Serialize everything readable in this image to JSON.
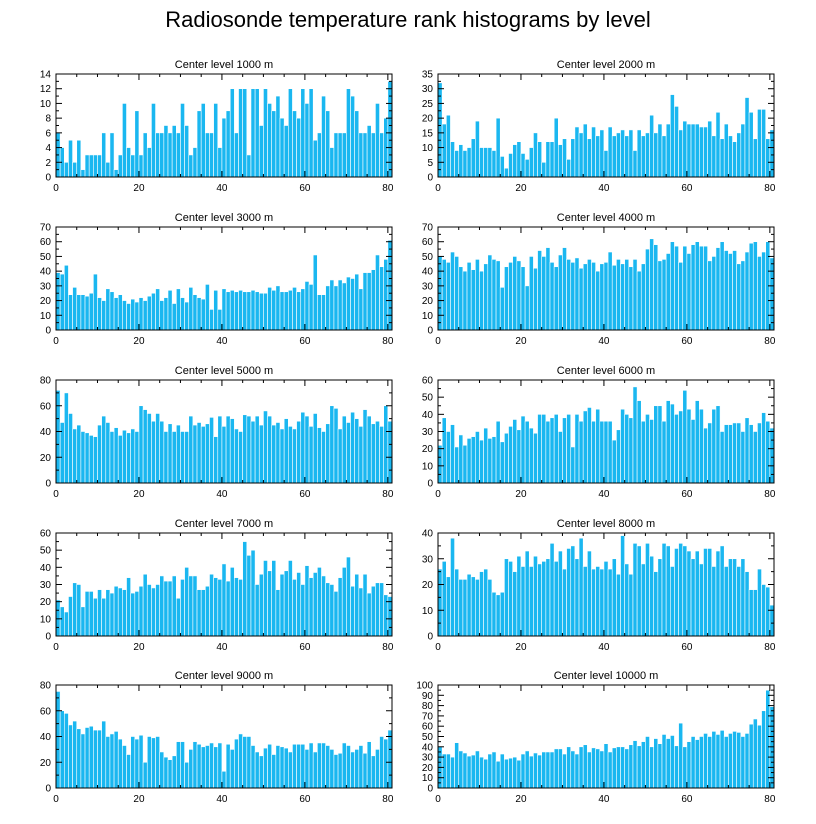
{
  "page": {
    "title": "Radiosonde temperature rank histograms by level"
  },
  "colors": {
    "bar": "#1ab7f0",
    "bar_edge": "#ffffff",
    "axis": "#000000",
    "background": "#ffffff"
  },
  "chart_data": [
    {
      "type": "bar",
      "title": "Center level 1000 m",
      "xlabel": "",
      "ylabel": "",
      "x_start": 0,
      "xlim": [
        0,
        81
      ],
      "ylim": [
        0,
        14
      ],
      "xticks": [
        0,
        20,
        40,
        60,
        80
      ],
      "yticks": [
        0,
        2,
        4,
        6,
        8,
        10,
        12,
        14
      ],
      "values": [
        6,
        4,
        2,
        5,
        2,
        5,
        1,
        3,
        3,
        3,
        3,
        6,
        2,
        6,
        1,
        3,
        10,
        4,
        3,
        9,
        3,
        6,
        4,
        10,
        6,
        6,
        7,
        6,
        7,
        6,
        10,
        7,
        3,
        4,
        9,
        10,
        6,
        6,
        10,
        4,
        8,
        9,
        12,
        6,
        12,
        12,
        3,
        12,
        12,
        7,
        12,
        10,
        9,
        11,
        8,
        7,
        12,
        9,
        8,
        12,
        10,
        12,
        5,
        6,
        11,
        9,
        4,
        6,
        6,
        6,
        12,
        11,
        9,
        6,
        6,
        7,
        6,
        10,
        6,
        8,
        13
      ]
    },
    {
      "type": "bar",
      "title": "Center level 2000 m",
      "xlabel": "",
      "ylabel": "",
      "x_start": 0,
      "xlim": [
        0,
        81
      ],
      "ylim": [
        0,
        35
      ],
      "xticks": [
        0,
        20,
        40,
        60,
        80
      ],
      "yticks": [
        0,
        5,
        10,
        15,
        20,
        25,
        30,
        35
      ],
      "values": [
        32,
        18,
        21,
        12,
        9,
        11,
        9,
        10,
        13,
        19,
        10,
        10,
        10,
        9,
        20,
        7,
        3,
        8,
        11,
        12,
        8,
        6,
        10,
        15,
        12,
        5,
        12,
        12,
        20,
        11,
        13,
        6,
        13,
        17,
        15,
        18,
        13,
        17,
        14,
        16,
        9,
        17,
        14,
        15,
        16,
        14,
        16,
        9,
        16,
        14,
        15,
        21,
        15,
        18,
        14,
        18,
        28,
        24,
        16,
        19,
        18,
        18,
        18,
        17,
        17,
        19,
        14,
        22,
        13,
        18,
        14,
        12,
        15,
        18,
        27,
        22,
        13,
        23,
        23,
        13,
        16
      ]
    },
    {
      "type": "bar",
      "title": "Center level 3000 m",
      "xlabel": "",
      "ylabel": "",
      "x_start": 0,
      "xlim": [
        0,
        81
      ],
      "ylim": [
        0,
        70
      ],
      "xticks": [
        0,
        20,
        40,
        60,
        80
      ],
      "yticks": [
        0,
        10,
        20,
        30,
        40,
        50,
        60,
        70
      ],
      "values": [
        39,
        38,
        44,
        24,
        29,
        24,
        24,
        23,
        25,
        38,
        22,
        20,
        28,
        26,
        22,
        24,
        20,
        18,
        21,
        19,
        22,
        20,
        23,
        25,
        28,
        20,
        22,
        27,
        18,
        28,
        22,
        19,
        29,
        24,
        22,
        21,
        31,
        14,
        27,
        14,
        28,
        26,
        27,
        26,
        27,
        26,
        26,
        27,
        26,
        25,
        25,
        29,
        27,
        30,
        26,
        26,
        27,
        29,
        26,
        28,
        33,
        31,
        51,
        24,
        24,
        30,
        34,
        30,
        34,
        32,
        36,
        35,
        38,
        28,
        39,
        39,
        41,
        51,
        43,
        48,
        61
      ]
    },
    {
      "type": "bar",
      "title": "Center level 4000 m",
      "xlabel": "",
      "ylabel": "",
      "x_start": 0,
      "xlim": [
        0,
        81
      ],
      "ylim": [
        0,
        70
      ],
      "xticks": [
        0,
        20,
        40,
        60,
        80
      ],
      "yticks": [
        0,
        10,
        20,
        30,
        40,
        50,
        60,
        70
      ],
      "values": [
        50,
        48,
        46,
        53,
        50,
        43,
        40,
        46,
        41,
        48,
        40,
        45,
        51,
        48,
        47,
        29,
        43,
        46,
        50,
        47,
        43,
        30,
        50,
        42,
        54,
        50,
        56,
        46,
        43,
        51,
        56,
        48,
        46,
        49,
        42,
        45,
        48,
        46,
        40,
        45,
        46,
        53,
        44,
        48,
        45,
        48,
        43,
        48,
        40,
        45,
        55,
        62,
        58,
        47,
        48,
        52,
        60,
        57,
        46,
        57,
        52,
        58,
        60,
        57,
        57,
        47,
        50,
        56,
        60,
        54,
        52,
        54,
        45,
        47,
        53,
        59,
        60,
        50,
        53,
        60,
        49
      ]
    },
    {
      "type": "bar",
      "title": "Center level 5000 m",
      "xlabel": "",
      "ylabel": "",
      "x_start": 0,
      "xlim": [
        0,
        81
      ],
      "ylim": [
        0,
        80
      ],
      "xticks": [
        0,
        20,
        40,
        60,
        80
      ],
      "yticks": [
        0,
        20,
        40,
        60,
        80
      ],
      "values": [
        72,
        47,
        70,
        54,
        42,
        45,
        40,
        39,
        37,
        36,
        45,
        52,
        47,
        40,
        43,
        37,
        41,
        39,
        42,
        40,
        60,
        57,
        54,
        48,
        54,
        48,
        40,
        46,
        40,
        45,
        40,
        40,
        52,
        45,
        47,
        44,
        46,
        51,
        36,
        52,
        44,
        52,
        50,
        42,
        40,
        53,
        52,
        48,
        52,
        45,
        56,
        52,
        45,
        47,
        42,
        50,
        44,
        42,
        48,
        55,
        52,
        44,
        54,
        43,
        40,
        46,
        60,
        58,
        42,
        52,
        47,
        55,
        50,
        44,
        57,
        52,
        46,
        48,
        44,
        60,
        48
      ]
    },
    {
      "type": "bar",
      "title": "Center level 6000 m",
      "xlabel": "",
      "ylabel": "",
      "x_start": 0,
      "xlim": [
        0,
        81
      ],
      "ylim": [
        0,
        60
      ],
      "xticks": [
        0,
        20,
        40,
        60,
        80
      ],
      "yticks": [
        0,
        10,
        20,
        30,
        40,
        50,
        60
      ],
      "values": [
        22,
        38,
        30,
        34,
        21,
        28,
        22,
        26,
        27,
        30,
        25,
        32,
        26,
        27,
        36,
        24,
        29,
        33,
        37,
        31,
        39,
        36,
        32,
        29,
        40,
        40,
        36,
        38,
        40,
        30,
        38,
        40,
        21,
        40,
        36,
        42,
        44,
        36,
        43,
        36,
        36,
        36,
        25,
        31,
        43,
        40,
        38,
        56,
        48,
        36,
        40,
        37,
        45,
        45,
        36,
        48,
        46,
        40,
        42,
        54,
        43,
        37,
        48,
        43,
        32,
        35,
        43,
        45,
        30,
        34,
        34,
        35,
        35,
        30,
        38,
        34,
        30,
        35,
        41,
        36,
        32
      ]
    },
    {
      "type": "bar",
      "title": "Center level 7000 m",
      "xlabel": "",
      "ylabel": "",
      "x_start": 0,
      "xlim": [
        0,
        81
      ],
      "ylim": [
        0,
        60
      ],
      "xticks": [
        0,
        20,
        40,
        60,
        80
      ],
      "yticks": [
        0,
        10,
        20,
        30,
        40,
        50,
        60
      ],
      "values": [
        21,
        17,
        14,
        23,
        31,
        30,
        17,
        26,
        26,
        22,
        27,
        22,
        27,
        25,
        29,
        28,
        27,
        34,
        25,
        26,
        29,
        36,
        30,
        28,
        30,
        35,
        32,
        32,
        35,
        22,
        33,
        40,
        35,
        35,
        27,
        27,
        29,
        36,
        34,
        33,
        42,
        32,
        40,
        34,
        33,
        55,
        47,
        50,
        30,
        36,
        44,
        38,
        44,
        27,
        36,
        38,
        44,
        33,
        37,
        30,
        41,
        34,
        37,
        40,
        35,
        31,
        30,
        26,
        34,
        40,
        46,
        29,
        36,
        28,
        36,
        25,
        29,
        31,
        31,
        24,
        23
      ]
    },
    {
      "type": "bar",
      "title": "Center level 8000 m",
      "xlabel": "",
      "ylabel": "",
      "x_start": 0,
      "xlim": [
        0,
        81
      ],
      "ylim": [
        0,
        40
      ],
      "xticks": [
        0,
        20,
        40,
        60,
        80
      ],
      "yticks": [
        0,
        10,
        20,
        30,
        40
      ],
      "values": [
        26,
        29,
        23,
        38,
        26,
        22,
        22,
        24,
        23,
        22,
        25,
        26,
        22,
        17,
        16,
        17,
        30,
        29,
        25,
        31,
        27,
        33,
        27,
        31,
        28,
        29,
        30,
        36,
        29,
        33,
        26,
        34,
        35,
        30,
        38,
        27,
        33,
        26,
        27,
        26,
        29,
        26,
        30,
        24,
        39,
        28,
        24,
        36,
        35,
        28,
        36,
        31,
        25,
        30,
        36,
        35,
        27,
        34,
        36,
        35,
        33,
        30,
        33,
        28,
        34,
        34,
        27,
        33,
        35,
        27,
        30,
        30,
        27,
        30,
        25,
        18,
        18,
        26,
        20,
        19,
        12
      ]
    },
    {
      "type": "bar",
      "title": "Center level 9000 m",
      "xlabel": "",
      "ylabel": "",
      "x_start": 0,
      "xlim": [
        0,
        81
      ],
      "ylim": [
        0,
        80
      ],
      "xticks": [
        0,
        20,
        40,
        60,
        80
      ],
      "yticks": [
        0,
        20,
        40,
        60,
        80
      ],
      "values": [
        75,
        60,
        58,
        49,
        52,
        46,
        42,
        47,
        48,
        45,
        45,
        52,
        40,
        42,
        44,
        38,
        33,
        26,
        40,
        38,
        41,
        20,
        40,
        39,
        40,
        28,
        24,
        22,
        25,
        36,
        36,
        20,
        30,
        36,
        34,
        32,
        33,
        35,
        32,
        35,
        13,
        34,
        30,
        38,
        42,
        40,
        40,
        33,
        28,
        25,
        31,
        34,
        26,
        33,
        32,
        31,
        28,
        34,
        34,
        34,
        30,
        35,
        28,
        35,
        35,
        33,
        30,
        26,
        27,
        35,
        33,
        28,
        30,
        33,
        27,
        36,
        25,
        30,
        40,
        38,
        45
      ]
    },
    {
      "type": "bar",
      "title": "Center level 10000 m",
      "xlabel": "",
      "ylabel": "",
      "x_start": 0,
      "xlim": [
        0,
        81
      ],
      "ylim": [
        0,
        100
      ],
      "xticks": [
        0,
        20,
        40,
        60,
        80
      ],
      "yticks": [
        0,
        10,
        20,
        30,
        40,
        50,
        60,
        70,
        80,
        90,
        100
      ],
      "values": [
        40,
        33,
        33,
        30,
        44,
        36,
        34,
        31,
        32,
        36,
        30,
        28,
        33,
        35,
        26,
        33,
        28,
        29,
        30,
        27,
        33,
        36,
        31,
        34,
        32,
        35,
        35,
        35,
        38,
        38,
        33,
        40,
        36,
        33,
        40,
        42,
        35,
        39,
        38,
        36,
        43,
        35,
        39,
        40,
        40,
        38,
        42,
        46,
        41,
        45,
        50,
        40,
        48,
        43,
        52,
        48,
        51,
        41,
        63,
        40,
        45,
        50,
        47,
        50,
        53,
        50,
        55,
        52,
        56,
        50,
        53,
        55,
        54,
        50,
        53,
        62,
        67,
        61,
        75,
        95,
        79
      ]
    }
  ]
}
